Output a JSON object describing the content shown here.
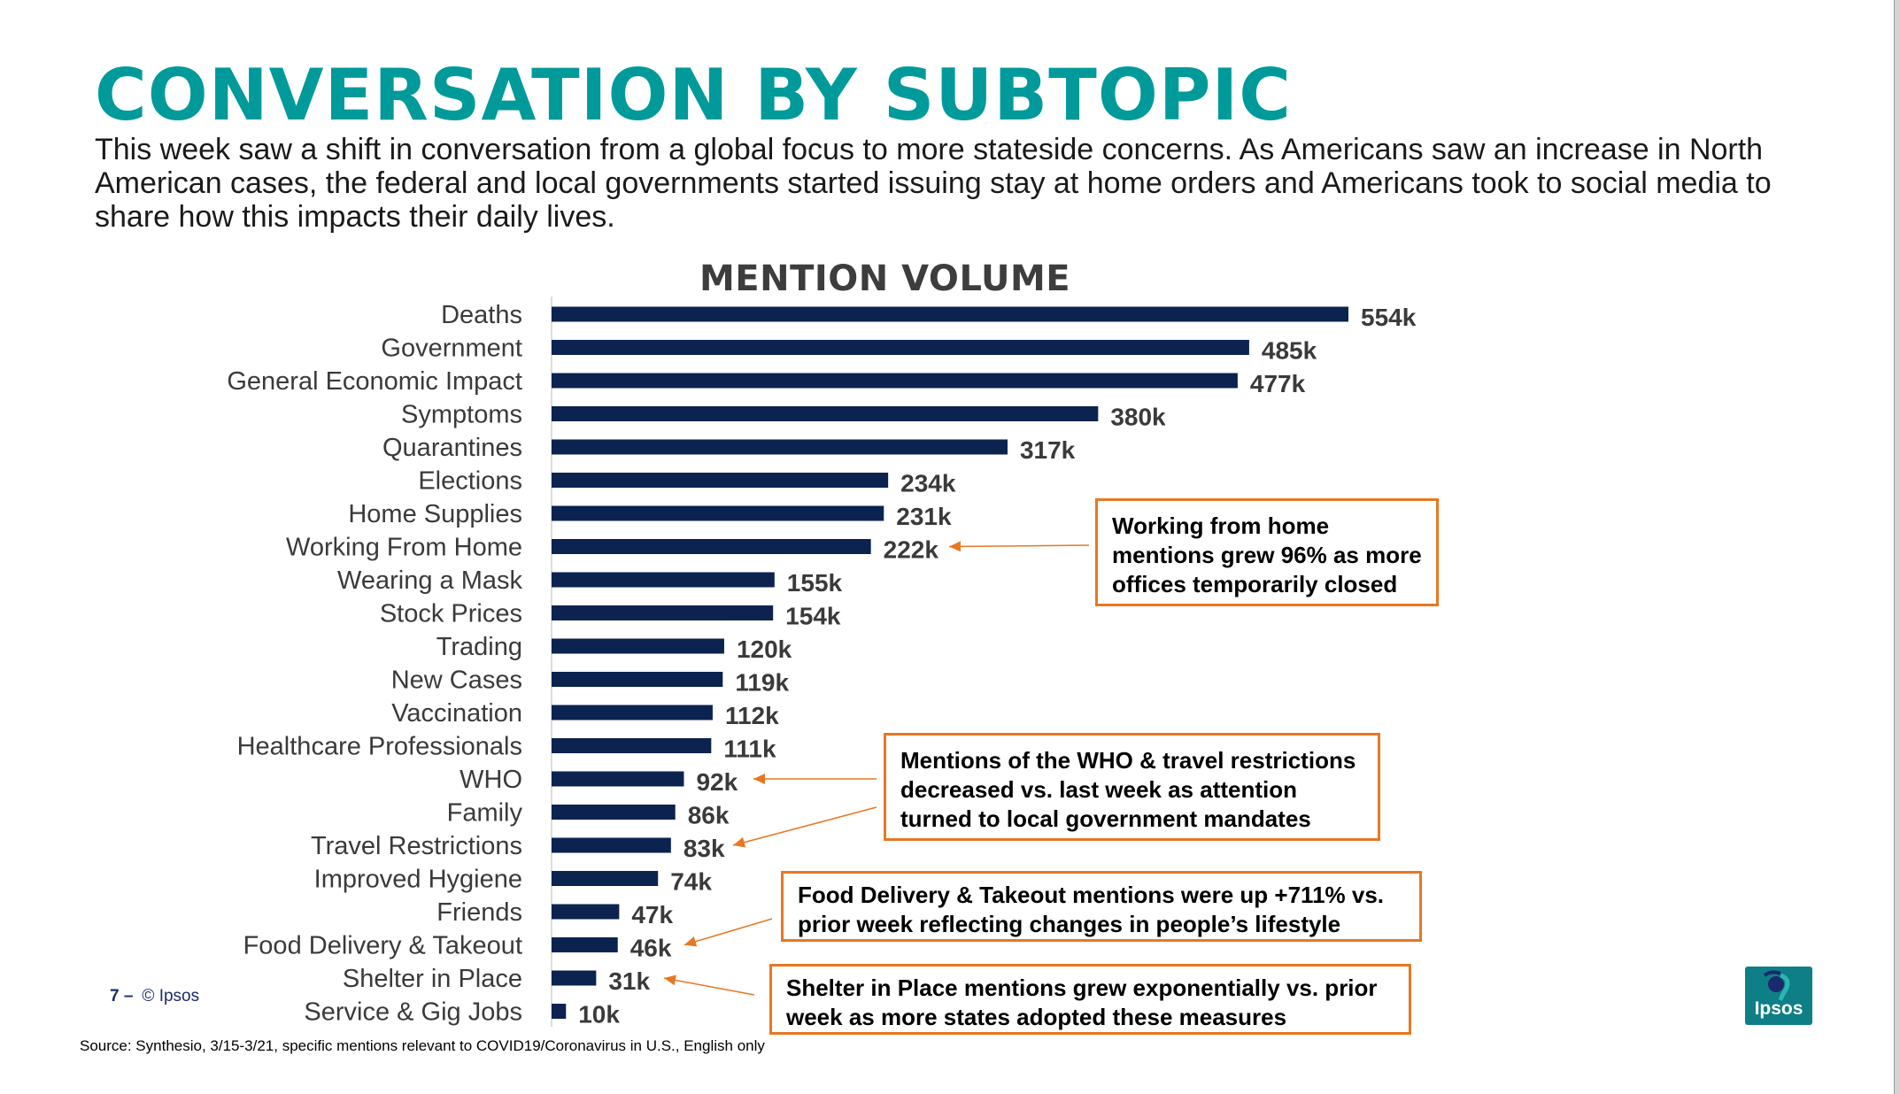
{
  "title": "CONVERSATION BY SUBTOPIC",
  "subtitle": "This week saw a shift in conversation from a global focus to more stateside concerns. As Americans saw an increase in North American cases, the federal and local governments started issuing stay at home orders and Americans took to social media to share how this impacts their daily lives.",
  "colors": {
    "title": "#009a9a",
    "bar": "#0c2350",
    "callout_border": "#e87722",
    "logo": "#0e7f86"
  },
  "chart_data": {
    "type": "bar",
    "orientation": "horizontal",
    "title": "MENTION VOLUME",
    "categories": [
      "Deaths",
      "Government",
      "General Economic Impact",
      "Symptoms",
      "Quarantines",
      "Elections",
      "Home Supplies",
      "Working From Home",
      "Wearing a Mask",
      "Stock Prices",
      "Trading",
      "New Cases",
      "Vaccination",
      "Healthcare Professionals",
      "WHO",
      "Family",
      "Travel Restrictions",
      "Improved Hygiene",
      "Friends",
      "Food Delivery & Takeout",
      "Shelter in Place",
      "Service & Gig Jobs"
    ],
    "values": [
      554,
      485,
      477,
      380,
      317,
      234,
      231,
      222,
      155,
      154,
      120,
      119,
      112,
      111,
      92,
      86,
      83,
      74,
      47,
      46,
      31,
      10
    ],
    "data_labels": [
      "554k",
      "485k",
      "477k",
      "380k",
      "317k",
      "234k",
      "231k",
      "222k",
      "155k",
      "154k",
      "120k",
      "119k",
      "112k",
      "111k",
      "92k",
      "86k",
      "83k",
      "74k",
      "47k",
      "46k",
      "31k",
      "10k"
    ],
    "unit": "k",
    "xlim": [
      0,
      554
    ],
    "grid": false,
    "legend": "none"
  },
  "callouts": [
    {
      "text": "Working from home mentions grew 96% as more offices temporarily closed",
      "points_to": [
        "Working From Home"
      ]
    },
    {
      "text": "Mentions of the WHO & travel restrictions decreased vs. last week as attention turned to local government mandates",
      "points_to": [
        "WHO",
        "Travel Restrictions"
      ]
    },
    {
      "text": "Food Delivery & Takeout mentions were up +711% vs. prior week reflecting changes in people’s lifestyle",
      "points_to": [
        "Food Delivery & Takeout"
      ]
    },
    {
      "text": "Shelter in Place mentions grew exponentially vs. prior week as more states adopted these measures",
      "points_to": [
        "Shelter in Place"
      ]
    }
  ],
  "footer": {
    "page_number": "7 –",
    "copyright": "© Ipsos"
  },
  "source": "Source: Synthesio, 3/15-3/21, specific mentions relevant to COVID19/Coronavirus in U.S., English only",
  "logo": {
    "text": "Ipsos",
    "icon": "ipsos-logo-icon"
  }
}
